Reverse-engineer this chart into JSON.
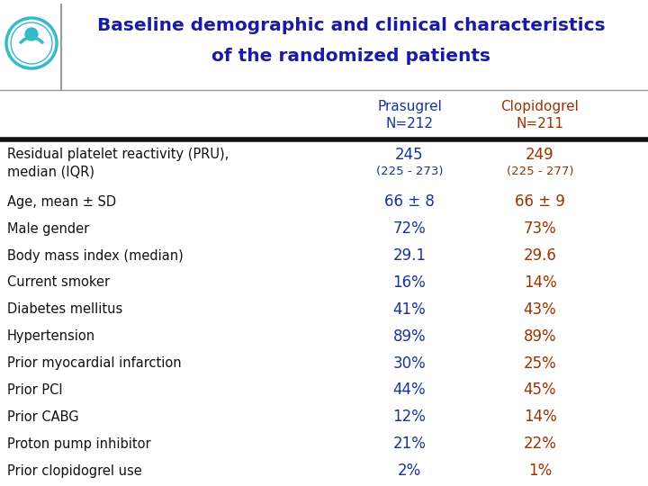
{
  "title_line1": "Baseline demographic and clinical characteristics",
  "title_line2": "of the randomized patients",
  "title_color": "#1a1aaa",
  "col1_header_line1": "Prasugrel",
  "col1_header_line2": "N=212",
  "col2_header_line1": "Clopidogrel",
  "col2_header_line2": "N=211",
  "col1_color": "#1a3399",
  "col2_color": "#993300",
  "rows": [
    {
      "label1": "Residual platelet reactivity (PRU),",
      "label2": "median (IQR)",
      "val1a": "245",
      "val1b": "(225 - 273)",
      "val2a": "249",
      "val2b": "(225 - 277)",
      "two_line": true
    },
    {
      "label1": "Age, mean ± SD",
      "label2": "",
      "val1a": "66 ± 8",
      "val1b": "",
      "val2a": "66 ± 9",
      "val2b": "",
      "two_line": false
    },
    {
      "label1": "Male gender",
      "label2": "",
      "val1a": "72%",
      "val1b": "",
      "val2a": "73%",
      "val2b": "",
      "two_line": false
    },
    {
      "label1": "Body mass index (median)",
      "label2": "",
      "val1a": "29.1",
      "val1b": "",
      "val2a": "29.6",
      "val2b": "",
      "two_line": false
    },
    {
      "label1": "Current smoker",
      "label2": "",
      "val1a": "16%",
      "val1b": "",
      "val2a": "14%",
      "val2b": "",
      "two_line": false
    },
    {
      "label1": "Diabetes mellitus",
      "label2": "",
      "val1a": "41%",
      "val1b": "",
      "val2a": "43%",
      "val2b": "",
      "two_line": false
    },
    {
      "label1": "Hypertension",
      "label2": "",
      "val1a": "89%",
      "val1b": "",
      "val2a": "89%",
      "val2b": "",
      "two_line": false
    },
    {
      "label1": "Prior myocardial infarction",
      "label2": "",
      "val1a": "30%",
      "val1b": "",
      "val2a": "25%",
      "val2b": "",
      "two_line": false
    },
    {
      "label1": "Prior PCI",
      "label2": "",
      "val1a": "44%",
      "val1b": "",
      "val2a": "45%",
      "val2b": "",
      "two_line": false
    },
    {
      "label1": "Prior CABG",
      "label2": "",
      "val1a": "12%",
      "val1b": "",
      "val2a": "14%",
      "val2b": "",
      "two_line": false
    },
    {
      "label1": "Proton pump inhibitor",
      "label2": "",
      "val1a": "21%",
      "val1b": "",
      "val2a": "22%",
      "val2b": "",
      "two_line": false
    },
    {
      "label1": "Prior clopidogrel use",
      "label2": "",
      "val1a": "2%",
      "val1b": "",
      "val2a": "1%",
      "val2b": "",
      "two_line": false
    }
  ],
  "bg_color": "#ffffff",
  "label_color": "#111111",
  "icon_color": "#33bbcc",
  "thick_line_color": "#111111",
  "thin_line_color": "#999999",
  "header_fontsize": 11,
  "label_fontsize": 10.5,
  "val_fontsize": 12,
  "val_sub_fontsize": 9.5,
  "title_fontsize": 14.5
}
